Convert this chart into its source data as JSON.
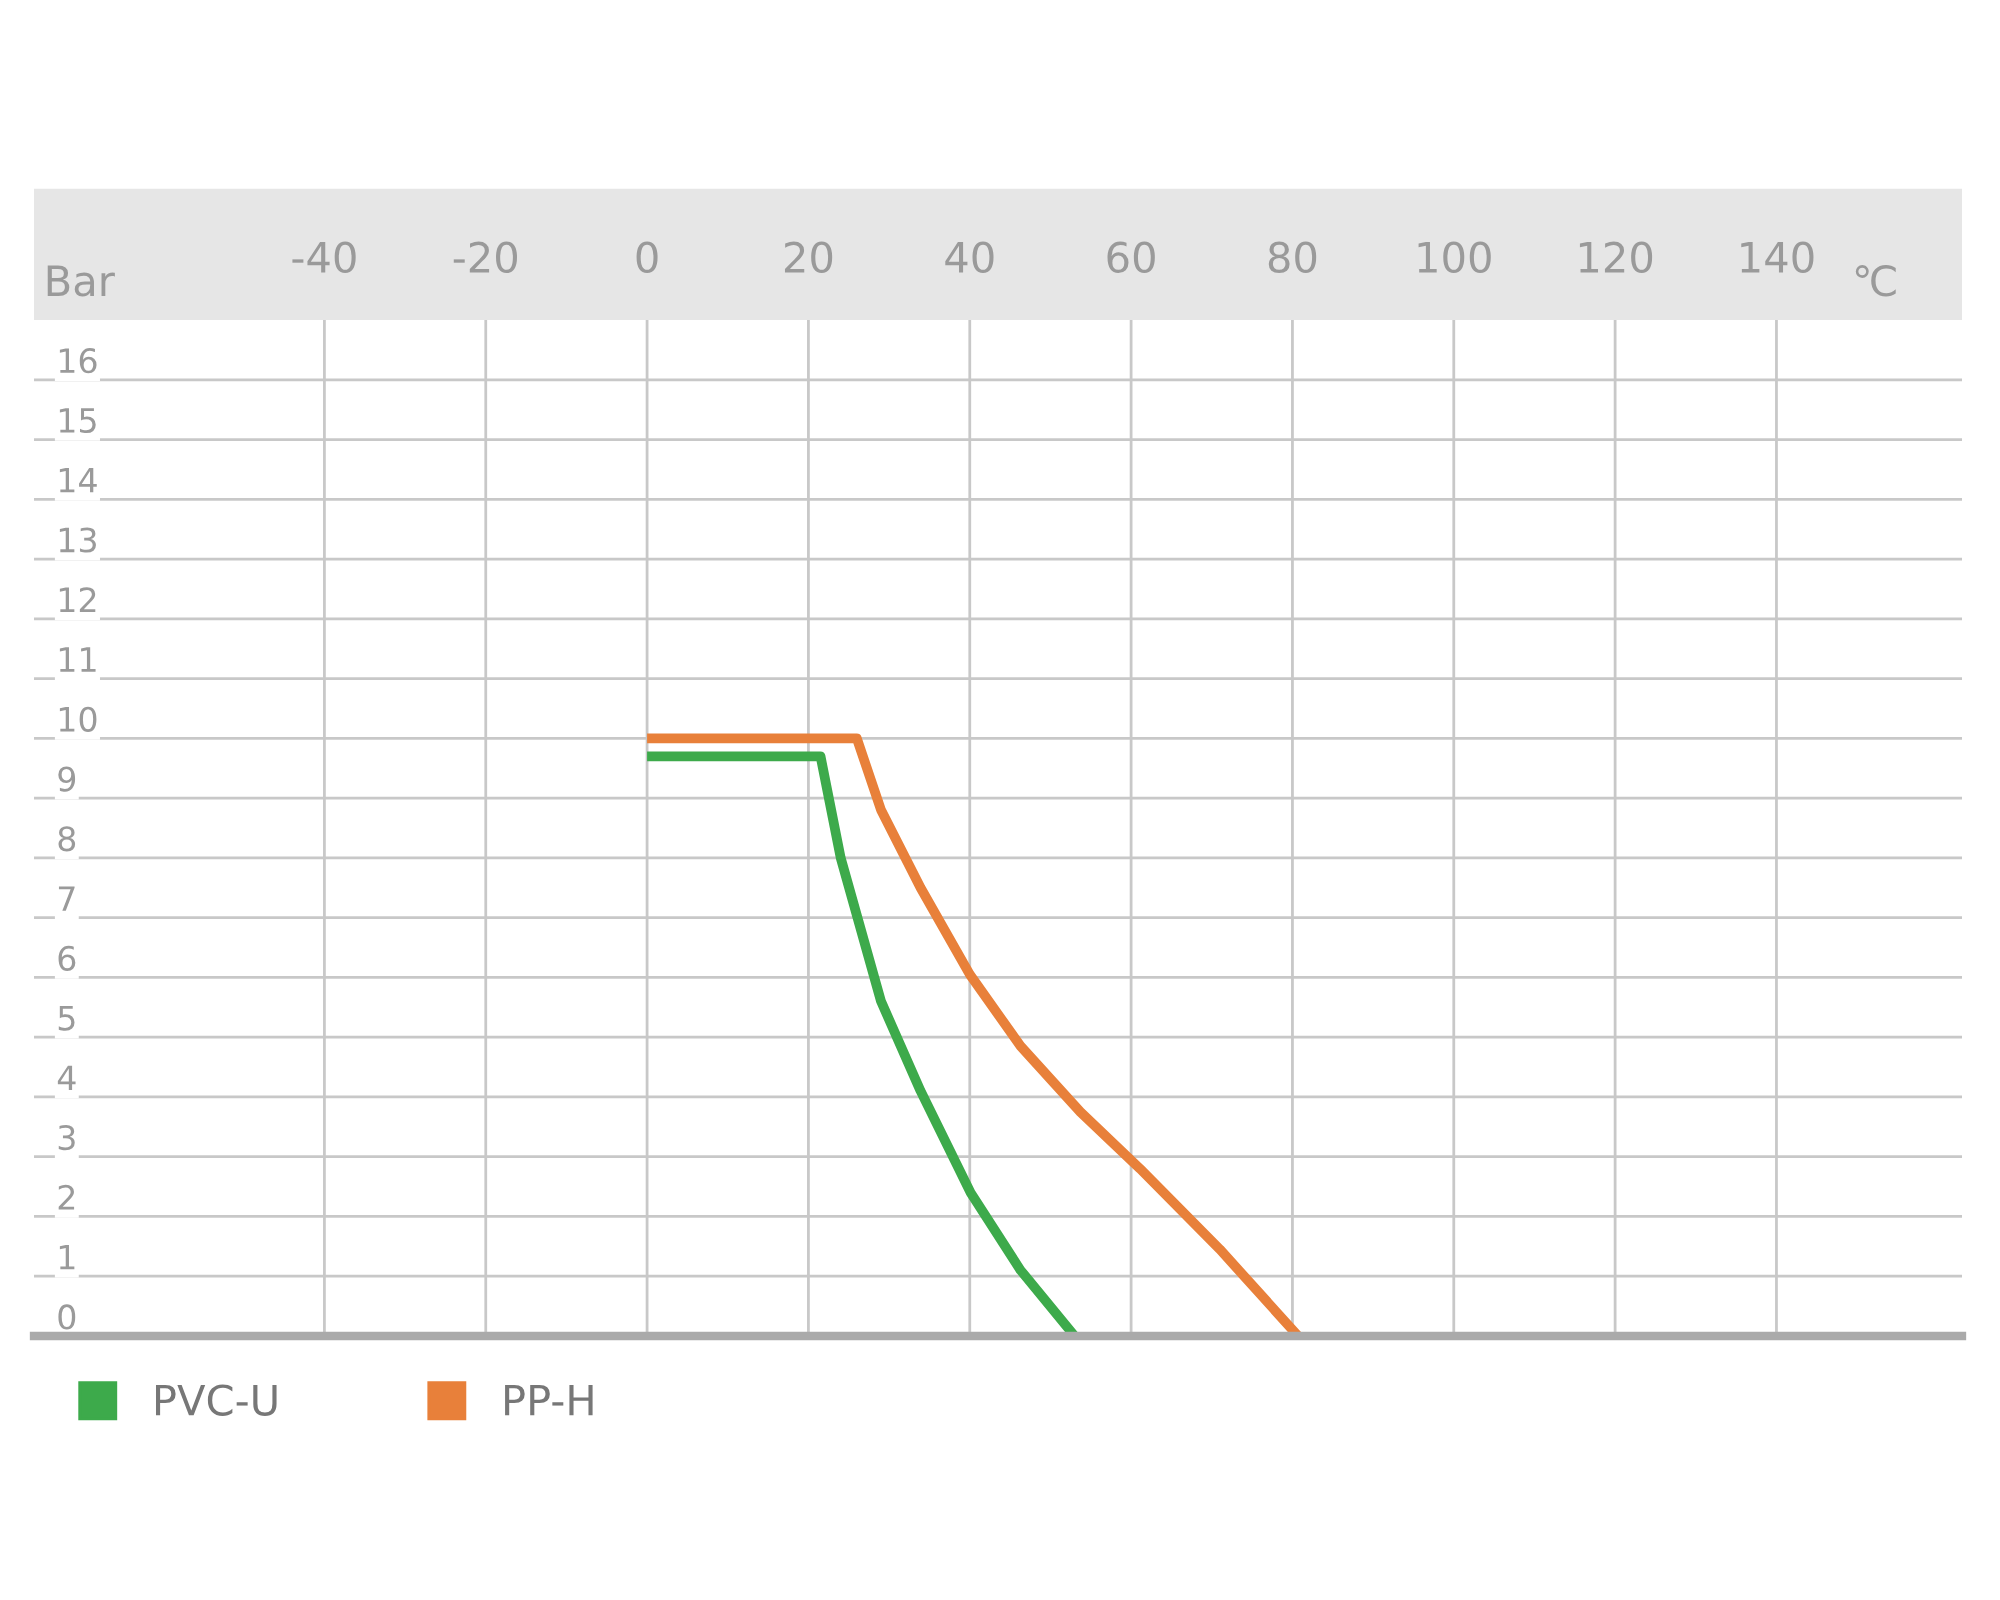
{
  "chart_data": {
    "type": "line",
    "xlabel": "℃",
    "ylabel": "Bar",
    "series": [
      {
        "name": "PVC-U",
        "color": "#3daa4b",
        "x": [
          0,
          21.5,
          24,
          29,
          33.9,
          40.1,
          46.3,
          53
        ],
        "values": [
          9.7,
          9.7,
          8,
          5.6,
          4.1,
          2.4,
          1.1,
          0
        ]
      },
      {
        "name": "PP-H",
        "color": "#e8803a",
        "x": [
          0,
          26,
          29,
          33.9,
          40,
          46.3,
          53.7,
          61.1,
          71,
          80.7
        ],
        "values": [
          10,
          10,
          8.8,
          7.5,
          6.05,
          4.85,
          3.75,
          2.8,
          1.45,
          0
        ]
      }
    ],
    "xlim": [
      -76,
      163
    ],
    "xticks": [
      -40,
      -20,
      0,
      20,
      40,
      60,
      80,
      100,
      120,
      140
    ],
    "ylim": [
      0,
      17
    ],
    "yticks": [
      0,
      1,
      2,
      3,
      4,
      5,
      6,
      7,
      8,
      9,
      10,
      11,
      12,
      13,
      14,
      15,
      16
    ],
    "grid": true,
    "legend": "bottom left",
    "line_style": "solid",
    "marker": "none"
  }
}
